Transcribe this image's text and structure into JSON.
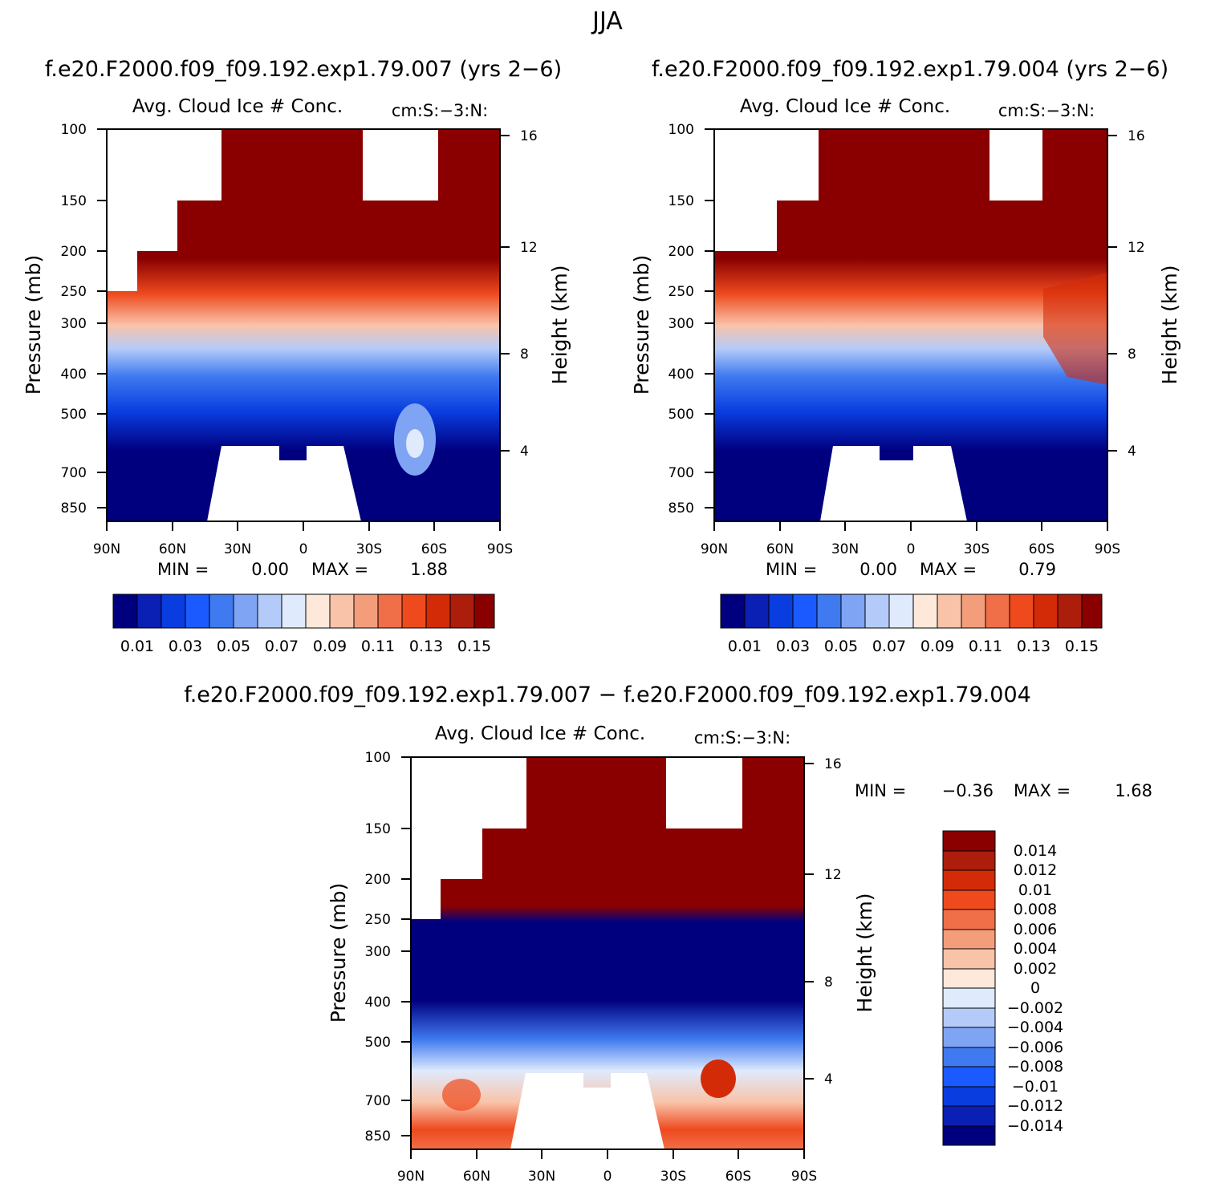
{
  "figure": {
    "season_title": "JJA"
  },
  "chart_data": [
    {
      "type": "heatmap",
      "run_title": "f.e20.F2000.f09_f09.192.exp1.79.007 (yrs 2−6)",
      "title": "Avg. Cloud Ice # Conc.",
      "units": "cm:S:−3:N:",
      "ylabel": "Pressure (mb)",
      "ylabel_right": "Height (km)",
      "x_ticks": [
        "90N",
        "60N",
        "30N",
        "0",
        "30S",
        "60S",
        "90S"
      ],
      "y_ticks": [
        "100",
        "150",
        "200",
        "250",
        "300",
        "400",
        "500",
        "700",
        "850"
      ],
      "y_ticks_right": [
        "16",
        "12",
        "8",
        "4"
      ],
      "min_label": "MIN =",
      "min_value": "0.00",
      "max_label": "MAX =",
      "max_value": "1.88",
      "colorbar_labels": [
        "0.01",
        "0.03",
        "0.05",
        "0.07",
        "0.09",
        "0.11",
        "0.13",
        "0.15"
      ],
      "colors": [
        "#00007f",
        "#0a1fb3",
        "#0a3de0",
        "#1a5aff",
        "#3f7af0",
        "#7fa4f4",
        "#b4cbf9",
        "#dfeafc",
        "#fde8da",
        "#f9c3a9",
        "#f49d7b",
        "#f06e48",
        "#ee4a1e",
        "#d32b08",
        "#ad1d0c",
        "#8a0000"
      ]
    },
    {
      "type": "heatmap",
      "run_title": "f.e20.F2000.f09_f09.192.exp1.79.004 (yrs 2−6)",
      "title": "Avg. Cloud Ice # Conc.",
      "units": "cm:S:−3:N:",
      "ylabel": "Pressure (mb)",
      "ylabel_right": "Height (km)",
      "x_ticks": [
        "90N",
        "60N",
        "30N",
        "0",
        "30S",
        "60S",
        "90S"
      ],
      "y_ticks": [
        "100",
        "150",
        "200",
        "250",
        "300",
        "400",
        "500",
        "700",
        "850"
      ],
      "y_ticks_right": [
        "16",
        "12",
        "8",
        "4"
      ],
      "min_label": "MIN =",
      "min_value": "0.00",
      "max_label": "MAX =",
      "max_value": "0.79",
      "colorbar_labels": [
        "0.01",
        "0.03",
        "0.05",
        "0.07",
        "0.09",
        "0.11",
        "0.13",
        "0.15"
      ],
      "colors": [
        "#00007f",
        "#0a1fb3",
        "#0a3de0",
        "#1a5aff",
        "#3f7af0",
        "#7fa4f4",
        "#b4cbf9",
        "#dfeafc",
        "#fde8da",
        "#f9c3a9",
        "#f49d7b",
        "#f06e48",
        "#ee4a1e",
        "#d32b08",
        "#ad1d0c",
        "#8a0000"
      ]
    },
    {
      "type": "heatmap",
      "run_title": "f.e20.F2000.f09_f09.192.exp1.79.007 − f.e20.F2000.f09_f09.192.exp1.79.004",
      "title": "Avg. Cloud Ice # Conc.",
      "units": "cm:S:−3:N:",
      "ylabel": "Pressure (mb)",
      "ylabel_right": "Height (km)",
      "x_ticks": [
        "90N",
        "60N",
        "30N",
        "0",
        "30S",
        "60S",
        "90S"
      ],
      "y_ticks": [
        "100",
        "150",
        "200",
        "250",
        "300",
        "400",
        "500",
        "700",
        "850"
      ],
      "y_ticks_right": [
        "16",
        "12",
        "8",
        "4"
      ],
      "min_label": "MIN =",
      "min_value": "−0.36",
      "max_label": "MAX =",
      "max_value": "1.68",
      "colorbar_labels": [
        "0.014",
        "0.012",
        "0.01",
        "0.008",
        "0.006",
        "0.004",
        "0.002",
        "0",
        "−0.002",
        "−0.004",
        "−0.006",
        "−0.008",
        "−0.01",
        "−0.012",
        "−0.014"
      ],
      "colors": [
        "#8a0000",
        "#ad1d0c",
        "#d32b08",
        "#ee4a1e",
        "#f06e48",
        "#f49d7b",
        "#f9c3a9",
        "#fde8da",
        "#dfeafc",
        "#b4cbf9",
        "#7fa4f4",
        "#3f7af0",
        "#1a5aff",
        "#0a3de0",
        "#0a1fb3",
        "#00007f"
      ]
    }
  ]
}
